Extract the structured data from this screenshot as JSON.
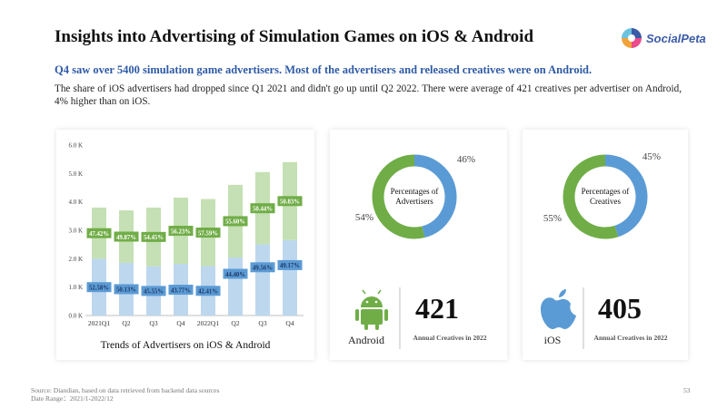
{
  "header": {
    "title": "Insights into Advertising of Simulation Games on iOS & Android",
    "logo_text": "SocialPeta",
    "subtitle": "Q4 saw over 5400 simulation game advertisers. Most of the advertisers and released creatives were on Android.",
    "description": "The share of iOS advertisers had dropped since Q1 2021 and didn't go up until Q2 2022. There were average of 421 creatives per advertiser on Android, 4% higher than on iOS."
  },
  "chart_data": [
    {
      "type": "bar",
      "stacked": true,
      "title": "Trends of Advertisers on iOS & Android",
      "categories": [
        "2021Q1",
        "Q2",
        "Q3",
        "Q4",
        "2022Q1",
        "Q2",
        "Q3",
        "Q4"
      ],
      "ylim": [
        0,
        6000
      ],
      "yticks": [
        "0.0 K",
        "1.0 K",
        "2.0 K",
        "3.0 K",
        "4.0 K",
        "5.0 K",
        "6.0 K"
      ],
      "totals": [
        3800,
        3700,
        3800,
        4150,
        4100,
        4600,
        5050,
        5400
      ],
      "series": [
        {
          "name": "iOS",
          "color": "#bdd7ee",
          "label_color": "#5b9bd5",
          "percent_labels": [
            "52.58%",
            "50.13%",
            "45.55%",
            "43.77%",
            "42.41%",
            "44.40%",
            "49.56%",
            "49.17%"
          ],
          "share": [
            52.58,
            50.13,
            45.55,
            43.77,
            42.41,
            44.4,
            49.56,
            49.17
          ]
        },
        {
          "name": "Android",
          "color": "#c5e0b4",
          "label_color": "#70ad47",
          "percent_labels": [
            "47.42%",
            "49.87%",
            "54.45%",
            "56.23%",
            "57.59%",
            "55.60%",
            "50.44%",
            "50.83%"
          ],
          "share": [
            47.42,
            49.87,
            54.45,
            56.23,
            57.59,
            55.6,
            50.44,
            50.83
          ]
        }
      ],
      "grid": false
    },
    {
      "type": "pie",
      "donut": true,
      "title": "Percentages of Advertisers",
      "slices": [
        {
          "label": "46%",
          "value": 46,
          "color": "#5b9bd5"
        },
        {
          "label": "54%",
          "value": 54,
          "color": "#70ad47"
        }
      ]
    },
    {
      "type": "pie",
      "donut": true,
      "title": "Percentages of Creatives",
      "slices": [
        {
          "label": "45%",
          "value": 45,
          "color": "#5b9bd5"
        },
        {
          "label": "55%",
          "value": 55,
          "color": "#70ad47"
        }
      ]
    }
  ],
  "stats": {
    "android": {
      "platform": "Android",
      "value": "421",
      "caption": "Annual Creatives in 2022",
      "icon": "android-icon"
    },
    "ios": {
      "platform": "iOS",
      "value": "405",
      "caption": "Annual Creatives in 2022",
      "icon": "apple-icon"
    }
  },
  "footer": {
    "source": "Source: Diandian, based on data retrieved from backend data sources",
    "date_range": "Date Range：2021/1-2022/12",
    "page_number": "53"
  }
}
